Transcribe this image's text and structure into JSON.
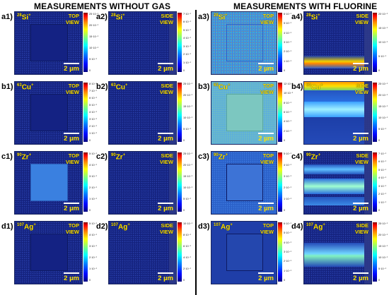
{
  "headings": {
    "left": "MEASUREMENTS WITHOUT GAS",
    "right": "MEASUREMENTS WITH FLUORINE"
  },
  "scale_label": "2 µm",
  "views": {
    "top": [
      "TOP",
      "VIEW"
    ],
    "side": [
      "SIDE",
      "VIEW"
    ]
  },
  "panels": [
    {
      "id": "a1",
      "label": "a1)",
      "mass": "28",
      "element": "Si",
      "sign": "+",
      "view": "top",
      "ticks": [
        "25·10⁻¹",
        "20·10⁻¹",
        "15·10⁻¹",
        "10·10⁻¹",
        "5·10⁻¹",
        "0"
      ]
    },
    {
      "id": "a2",
      "label": "a2)",
      "mass": "28",
      "element": "Si",
      "sign": "+",
      "view": "side",
      "ticks": [
        "7·10⁻¹",
        "6·10⁻¹",
        "5·10⁻¹",
        "4·10⁻¹",
        "3·10⁻¹",
        "2·10⁻¹",
        "1·10⁻¹",
        "0"
      ]
    },
    {
      "id": "a3",
      "label": "a3)",
      "mass": "28",
      "element": "Si",
      "sign": "+",
      "view": "top",
      "ticks": [
        "6·10⁻¹",
        "5·10⁻¹",
        "4·10⁻¹",
        "3·10⁻¹",
        "2·10⁻¹",
        "1·10⁻¹",
        "0"
      ]
    },
    {
      "id": "a4",
      "label": "a4)",
      "mass": "28",
      "element": "Si",
      "sign": "+",
      "view": "side",
      "ticks": [
        "20·10⁻¹",
        "15·10⁻¹",
        "10·10⁻¹",
        "5·10⁻¹",
        "0"
      ]
    },
    {
      "id": "b1",
      "label": "b1)",
      "mass": "63",
      "element": "Cu",
      "sign": "+",
      "view": "top",
      "ticks": [
        "8·10⁻¹",
        "7·10⁻¹",
        "6·10⁻¹",
        "5·10⁻¹",
        "4·10⁻¹",
        "3·10⁻¹",
        "2·10⁻¹",
        "1·10⁻¹",
        "0"
      ]
    },
    {
      "id": "b2",
      "label": "b2)",
      "mass": "63",
      "element": "Cu",
      "sign": "+",
      "view": "side",
      "ticks": [
        "25·10⁻¹",
        "20·10⁻¹",
        "15·10⁻¹",
        "10·10⁻¹",
        "5·10⁻¹",
        "0"
      ]
    },
    {
      "id": "b3",
      "label": "b3)",
      "mass": "63",
      "element": "Cu",
      "sign": "+",
      "view": "top",
      "ticks": [
        "12·10⁻¹",
        "10·10⁻¹",
        "8·10⁻¹",
        "6·10⁻¹",
        "4·10⁻¹",
        "2·10⁻¹",
        "0"
      ]
    },
    {
      "id": "b4",
      "label": "b4)",
      "mass": "63",
      "element": "Cu",
      "sign": "+",
      "view": "side",
      "ticks": [
        "25·10⁻¹",
        "20·10⁻¹",
        "15·10⁻¹",
        "10·10⁻¹",
        "5·10⁻¹",
        "0"
      ]
    },
    {
      "id": "c1",
      "label": "c1)",
      "mass": "90",
      "element": "Zr",
      "sign": "+",
      "view": "top",
      "ticks": [
        "5·10⁻¹",
        "4·10⁻¹",
        "3·10⁻¹",
        "2·10⁻¹",
        "1·10⁻¹",
        "0"
      ]
    },
    {
      "id": "c2",
      "label": "c2)",
      "mass": "90",
      "element": "Zr",
      "sign": "+",
      "view": "side",
      "ticks": [
        "25·10⁻¹",
        "20·10⁻¹",
        "15·10⁻¹",
        "10·10⁻¹",
        "5·10⁻¹",
        "0"
      ]
    },
    {
      "id": "c3",
      "label": "c3)",
      "mass": "90",
      "element": "Zr",
      "sign": "+",
      "view": "top",
      "ticks": [
        "5·10⁻¹",
        "4·10⁻¹",
        "3·10⁻¹",
        "2·10⁻¹",
        "1·10⁻¹",
        "0"
      ]
    },
    {
      "id": "c4",
      "label": "c4)",
      "mass": "90",
      "element": "Zr",
      "sign": "+",
      "view": "side",
      "ticks": [
        "7·10⁻¹",
        "6·10⁻¹",
        "5·10⁻¹",
        "4·10⁻¹",
        "3·10⁻¹",
        "2·10⁻¹",
        "1·10⁻¹",
        "0"
      ]
    },
    {
      "id": "d1",
      "label": "d1)",
      "mass": "107",
      "element": "Ag",
      "sign": "+",
      "view": "top",
      "ticks": [
        "5·10⁻¹",
        "4·10⁻¹",
        "3·10⁻¹",
        "2·10⁻¹",
        "1·10⁻¹",
        "0"
      ]
    },
    {
      "id": "d2",
      "label": "d2)",
      "mass": "107",
      "element": "Ag",
      "sign": "+",
      "view": "side",
      "ticks": [
        "10·10⁻¹",
        "8·10⁻¹",
        "6·10⁻¹",
        "4·10⁻¹",
        "2·10⁻¹",
        "0"
      ]
    },
    {
      "id": "d3",
      "label": "d3)",
      "mass": "107",
      "element": "Ag",
      "sign": "+",
      "view": "top",
      "ticks": [
        "6·10⁻¹",
        "5·10⁻¹",
        "4·10⁻¹",
        "3·10⁻¹",
        "2·10⁻¹",
        "1·10⁻¹",
        "0"
      ]
    },
    {
      "id": "d4",
      "label": "d4)",
      "mass": "107",
      "element": "Ag",
      "sign": "+",
      "view": "side",
      "ticks": [
        "25·10⁻¹",
        "20·10⁻¹",
        "15·10⁻¹",
        "10·10⁻¹",
        "5·10⁻¹",
        "0"
      ]
    }
  ]
}
